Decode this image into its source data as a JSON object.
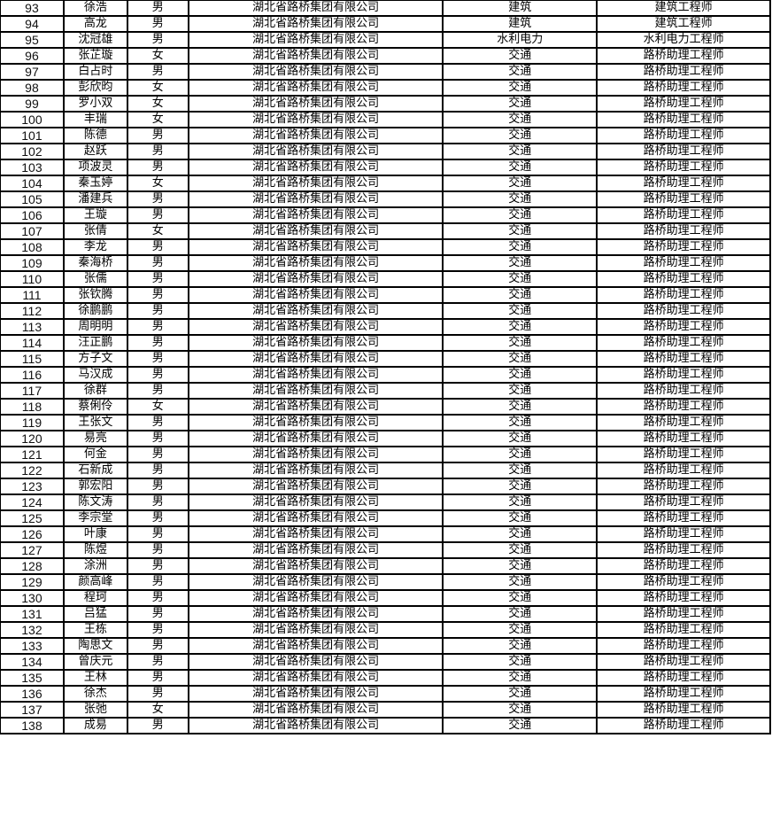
{
  "table": {
    "rows": [
      [
        "93",
        "徐浩",
        "男",
        "湖北省路桥集团有限公司",
        "建筑",
        "建筑工程师"
      ],
      [
        "94",
        "高龙",
        "男",
        "湖北省路桥集团有限公司",
        "建筑",
        "建筑工程师"
      ],
      [
        "95",
        "沈冠雄",
        "男",
        "湖北省路桥集团有限公司",
        "水利电力",
        "水利电力工程师"
      ],
      [
        "96",
        "张芷璇",
        "女",
        "湖北省路桥集团有限公司",
        "交通",
        "路桥助理工程师"
      ],
      [
        "97",
        "白占时",
        "男",
        "湖北省路桥集团有限公司",
        "交通",
        "路桥助理工程师"
      ],
      [
        "98",
        "彭欣昀",
        "女",
        "湖北省路桥集团有限公司",
        "交通",
        "路桥助理工程师"
      ],
      [
        "99",
        "罗小双",
        "女",
        "湖北省路桥集团有限公司",
        "交通",
        "路桥助理工程师"
      ],
      [
        "100",
        "丰瑞",
        "女",
        "湖北省路桥集团有限公司",
        "交通",
        "路桥助理工程师"
      ],
      [
        "101",
        "陈德",
        "男",
        "湖北省路桥集团有限公司",
        "交通",
        "路桥助理工程师"
      ],
      [
        "102",
        "赵跃",
        "男",
        "湖北省路桥集团有限公司",
        "交通",
        "路桥助理工程师"
      ],
      [
        "103",
        "项波灵",
        "男",
        "湖北省路桥集团有限公司",
        "交通",
        "路桥助理工程师"
      ],
      [
        "104",
        "秦玉婷",
        "女",
        "湖北省路桥集团有限公司",
        "交通",
        "路桥助理工程师"
      ],
      [
        "105",
        "潘建兵",
        "男",
        "湖北省路桥集团有限公司",
        "交通",
        "路桥助理工程师"
      ],
      [
        "106",
        "王璇",
        "男",
        "湖北省路桥集团有限公司",
        "交通",
        "路桥助理工程师"
      ],
      [
        "107",
        "张倩",
        "女",
        "湖北省路桥集团有限公司",
        "交通",
        "路桥助理工程师"
      ],
      [
        "108",
        "李龙",
        "男",
        "湖北省路桥集团有限公司",
        "交通",
        "路桥助理工程师"
      ],
      [
        "109",
        "秦海桥",
        "男",
        "湖北省路桥集团有限公司",
        "交通",
        "路桥助理工程师"
      ],
      [
        "110",
        "张儒",
        "男",
        "湖北省路桥集团有限公司",
        "交通",
        "路桥助理工程师"
      ],
      [
        "111",
        "张钦腾",
        "男",
        "湖北省路桥集团有限公司",
        "交通",
        "路桥助理工程师"
      ],
      [
        "112",
        "徐鹏鹏",
        "男",
        "湖北省路桥集团有限公司",
        "交通",
        "路桥助理工程师"
      ],
      [
        "113",
        "周明明",
        "男",
        "湖北省路桥集团有限公司",
        "交通",
        "路桥助理工程师"
      ],
      [
        "114",
        "汪正鹏",
        "男",
        "湖北省路桥集团有限公司",
        "交通",
        "路桥助理工程师"
      ],
      [
        "115",
        "方子文",
        "男",
        "湖北省路桥集团有限公司",
        "交通",
        "路桥助理工程师"
      ],
      [
        "116",
        "马汉成",
        "男",
        "湖北省路桥集团有限公司",
        "交通",
        "路桥助理工程师"
      ],
      [
        "117",
        "徐群",
        "男",
        "湖北省路桥集团有限公司",
        "交通",
        "路桥助理工程师"
      ],
      [
        "118",
        "蔡俐伶",
        "女",
        "湖北省路桥集团有限公司",
        "交通",
        "路桥助理工程师"
      ],
      [
        "119",
        "王张文",
        "男",
        "湖北省路桥集团有限公司",
        "交通",
        "路桥助理工程师"
      ],
      [
        "120",
        "易亮",
        "男",
        "湖北省路桥集团有限公司",
        "交通",
        "路桥助理工程师"
      ],
      [
        "121",
        "何金",
        "男",
        "湖北省路桥集团有限公司",
        "交通",
        "路桥助理工程师"
      ],
      [
        "122",
        "石新成",
        "男",
        "湖北省路桥集团有限公司",
        "交通",
        "路桥助理工程师"
      ],
      [
        "123",
        "郭宏阳",
        "男",
        "湖北省路桥集团有限公司",
        "交通",
        "路桥助理工程师"
      ],
      [
        "124",
        "陈文涛",
        "男",
        "湖北省路桥集团有限公司",
        "交通",
        "路桥助理工程师"
      ],
      [
        "125",
        "李宗堂",
        "男",
        "湖北省路桥集团有限公司",
        "交通",
        "路桥助理工程师"
      ],
      [
        "126",
        "叶康",
        "男",
        "湖北省路桥集团有限公司",
        "交通",
        "路桥助理工程师"
      ],
      [
        "127",
        "陈煜",
        "男",
        "湖北省路桥集团有限公司",
        "交通",
        "路桥助理工程师"
      ],
      [
        "128",
        "涂洲",
        "男",
        "湖北省路桥集团有限公司",
        "交通",
        "路桥助理工程师"
      ],
      [
        "129",
        "颜高峰",
        "男",
        "湖北省路桥集团有限公司",
        "交通",
        "路桥助理工程师"
      ],
      [
        "130",
        "程珂",
        "男",
        "湖北省路桥集团有限公司",
        "交通",
        "路桥助理工程师"
      ],
      [
        "131",
        "吕猛",
        "男",
        "湖北省路桥集团有限公司",
        "交通",
        "路桥助理工程师"
      ],
      [
        "132",
        "王栋",
        "男",
        "湖北省路桥集团有限公司",
        "交通",
        "路桥助理工程师"
      ],
      [
        "133",
        "陶思文",
        "男",
        "湖北省路桥集团有限公司",
        "交通",
        "路桥助理工程师"
      ],
      [
        "134",
        "曾庆元",
        "男",
        "湖北省路桥集团有限公司",
        "交通",
        "路桥助理工程师"
      ],
      [
        "135",
        "王林",
        "男",
        "湖北省路桥集团有限公司",
        "交通",
        "路桥助理工程师"
      ],
      [
        "136",
        "徐杰",
        "男",
        "湖北省路桥集团有限公司",
        "交通",
        "路桥助理工程师"
      ],
      [
        "137",
        "张弛",
        "女",
        "湖北省路桥集团有限公司",
        "交通",
        "路桥助理工程师"
      ],
      [
        "138",
        "成易",
        "男",
        "湖北省路桥集团有限公司",
        "交通",
        "路桥助理工程师"
      ]
    ]
  }
}
